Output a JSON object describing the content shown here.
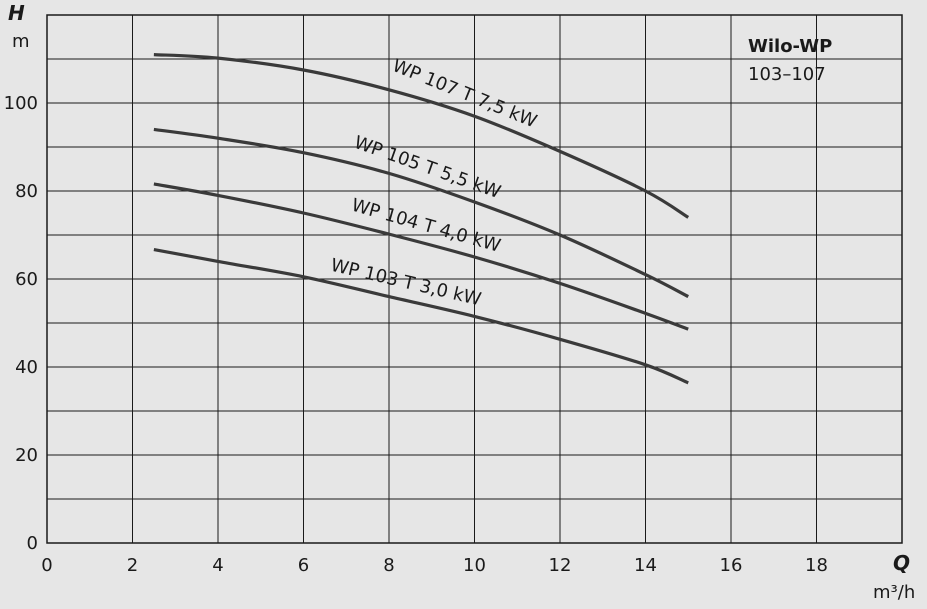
{
  "chart_data": {
    "type": "line",
    "title": "Wilo-WP",
    "subtitle": "103–107",
    "y_axis_symbol": "H",
    "y_axis_unit": "m",
    "x_axis_symbol": "Q",
    "x_axis_unit": "m³/h",
    "xlim": [
      0,
      20
    ],
    "ylim": [
      0,
      115
    ],
    "x_ticks": [
      0,
      2,
      4,
      6,
      8,
      10,
      12,
      14,
      16,
      18
    ],
    "y_ticks": [
      0,
      20,
      40,
      60,
      80,
      100
    ],
    "x_tick_labels": [
      "0",
      "2",
      "4",
      "6",
      "8",
      "10",
      "12",
      "14",
      "16",
      "18"
    ],
    "y_tick_labels": [
      "0",
      "20",
      "40",
      "60",
      "80",
      "100"
    ],
    "grid": true,
    "series": [
      {
        "name": "WP 107 T 7,5 kW",
        "x": [
          2.5,
          4,
          6,
          8,
          10,
          12,
          14,
          15
        ],
        "y": [
          111,
          110.2,
          107.5,
          103,
          97,
          89,
          80,
          74
        ]
      },
      {
        "name": "WP 105 T 5,5 kW",
        "x": [
          2.5,
          4,
          6,
          8,
          10,
          12,
          14,
          15
        ],
        "y": [
          94,
          92,
          88.7,
          84,
          77.5,
          70,
          61,
          56
        ]
      },
      {
        "name": "WP 104 T 4,0 kW",
        "x": [
          2.5,
          4,
          6,
          8,
          10,
          12,
          14,
          15
        ],
        "y": [
          81.6,
          79,
          75,
          70.2,
          65,
          59,
          52.2,
          48.6
        ]
      },
      {
        "name": "WP 103 T 3,0 kW",
        "x": [
          2.5,
          4,
          6,
          8,
          10,
          12,
          14,
          15
        ],
        "y": [
          66.7,
          64,
          60.5,
          56,
          51.5,
          46.3,
          40.5,
          36.4
        ]
      }
    ]
  }
}
